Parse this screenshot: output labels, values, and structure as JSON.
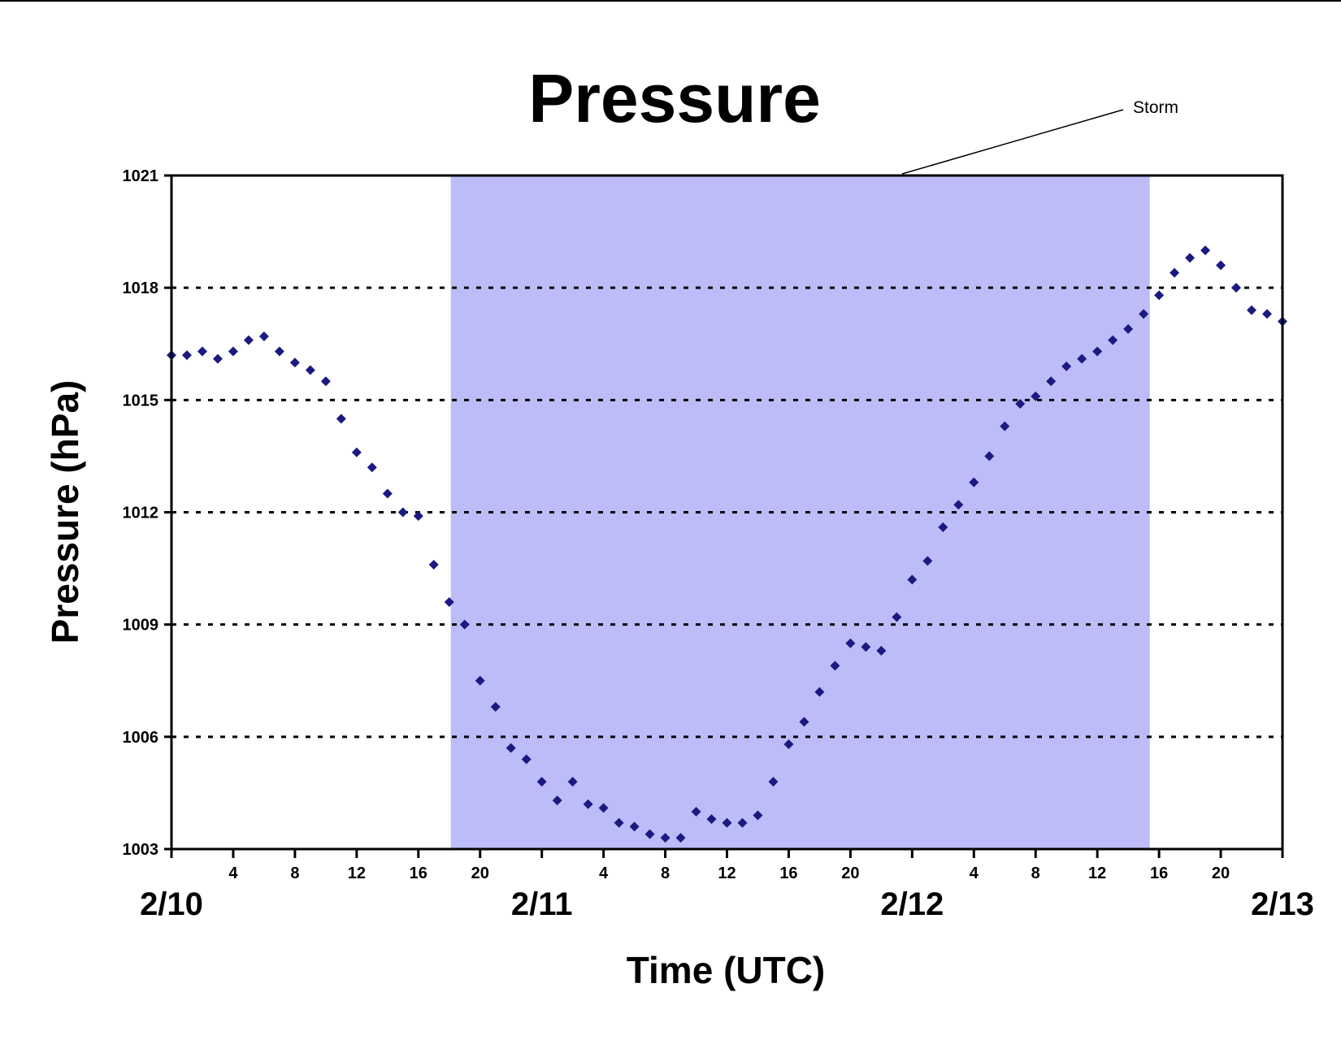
{
  "chart_data": {
    "type": "scatter",
    "title": "Pressure",
    "xlabel": "Time (UTC)",
    "ylabel": "Pressure (hPa)",
    "ylim": [
      1003,
      1021
    ],
    "yticks": [
      1003,
      1006,
      1009,
      1012,
      1015,
      1018,
      1021
    ],
    "xlim_hours": [
      0,
      72
    ],
    "hour_tick_labels": [
      {
        "hour": 4,
        "label": "4"
      },
      {
        "hour": 8,
        "label": "8"
      },
      {
        "hour": 12,
        "label": "12"
      },
      {
        "hour": 16,
        "label": "16"
      },
      {
        "hour": 20,
        "label": "20"
      },
      {
        "hour": 28,
        "label": "4"
      },
      {
        "hour": 32,
        "label": "8"
      },
      {
        "hour": 36,
        "label": "12"
      },
      {
        "hour": 40,
        "label": "16"
      },
      {
        "hour": 44,
        "label": "20"
      },
      {
        "hour": 52,
        "label": "4"
      },
      {
        "hour": 56,
        "label": "8"
      },
      {
        "hour": 60,
        "label": "12"
      },
      {
        "hour": 64,
        "label": "16"
      },
      {
        "hour": 68,
        "label": "20"
      }
    ],
    "date_labels": [
      {
        "hour": 0,
        "label": "2/10"
      },
      {
        "hour": 24,
        "label": "2/11"
      },
      {
        "hour": 48,
        "label": "2/12"
      },
      {
        "hour": 72,
        "label": "2/13"
      }
    ],
    "grid": "horizontal dotted",
    "storm_band": {
      "label": "Storm",
      "start_hour": 18.1,
      "end_hour": 63.4,
      "color": "#bcbcf9"
    },
    "marker_color": "#1a1a80",
    "series": [
      {
        "x": [
          0,
          1,
          2,
          3,
          4,
          5,
          6,
          7,
          8,
          9,
          10,
          11,
          12,
          13,
          14,
          15,
          16,
          17,
          18,
          19,
          20,
          21,
          22,
          23,
          24,
          25,
          26,
          27,
          28,
          29,
          30,
          31,
          32,
          33,
          34,
          35,
          36,
          37,
          38,
          39,
          40,
          41,
          42,
          43,
          44,
          45,
          46,
          47,
          48,
          49,
          50,
          51,
          52,
          53,
          54,
          55,
          56,
          57,
          58,
          59,
          60,
          61,
          62,
          63,
          64,
          65,
          66,
          67,
          68,
          69,
          70,
          71,
          72
        ],
        "y": [
          1016.2,
          1016.2,
          1016.3,
          1016.1,
          1016.3,
          1016.6,
          1016.7,
          1016.3,
          1016.0,
          1015.8,
          1015.5,
          1014.5,
          1013.6,
          1013.2,
          1012.5,
          1012.0,
          1011.9,
          1010.6,
          1009.6,
          1009.0,
          1007.5,
          1006.8,
          1005.7,
          1005.4,
          1004.8,
          1004.3,
          1004.8,
          1004.2,
          1004.1,
          1003.7,
          1003.6,
          1003.4,
          1003.3,
          1003.3,
          1004.0,
          1003.8,
          1003.7,
          1003.7,
          1003.9,
          1004.8,
          1005.8,
          1006.4,
          1007.2,
          1007.9,
          1008.5,
          1008.4,
          1008.3,
          1009.2,
          1010.2,
          1010.7,
          1011.6,
          1012.2,
          1012.8,
          1013.5,
          1014.3,
          1014.9,
          1015.1,
          1015.5,
          1015.9,
          1016.1,
          1016.3,
          1016.6,
          1016.9,
          1017.3,
          1017.8,
          1018.4,
          1018.8,
          1019.0,
          1018.6,
          1018.0,
          1017.4,
          1017.3,
          1017.1
        ]
      }
    ]
  }
}
